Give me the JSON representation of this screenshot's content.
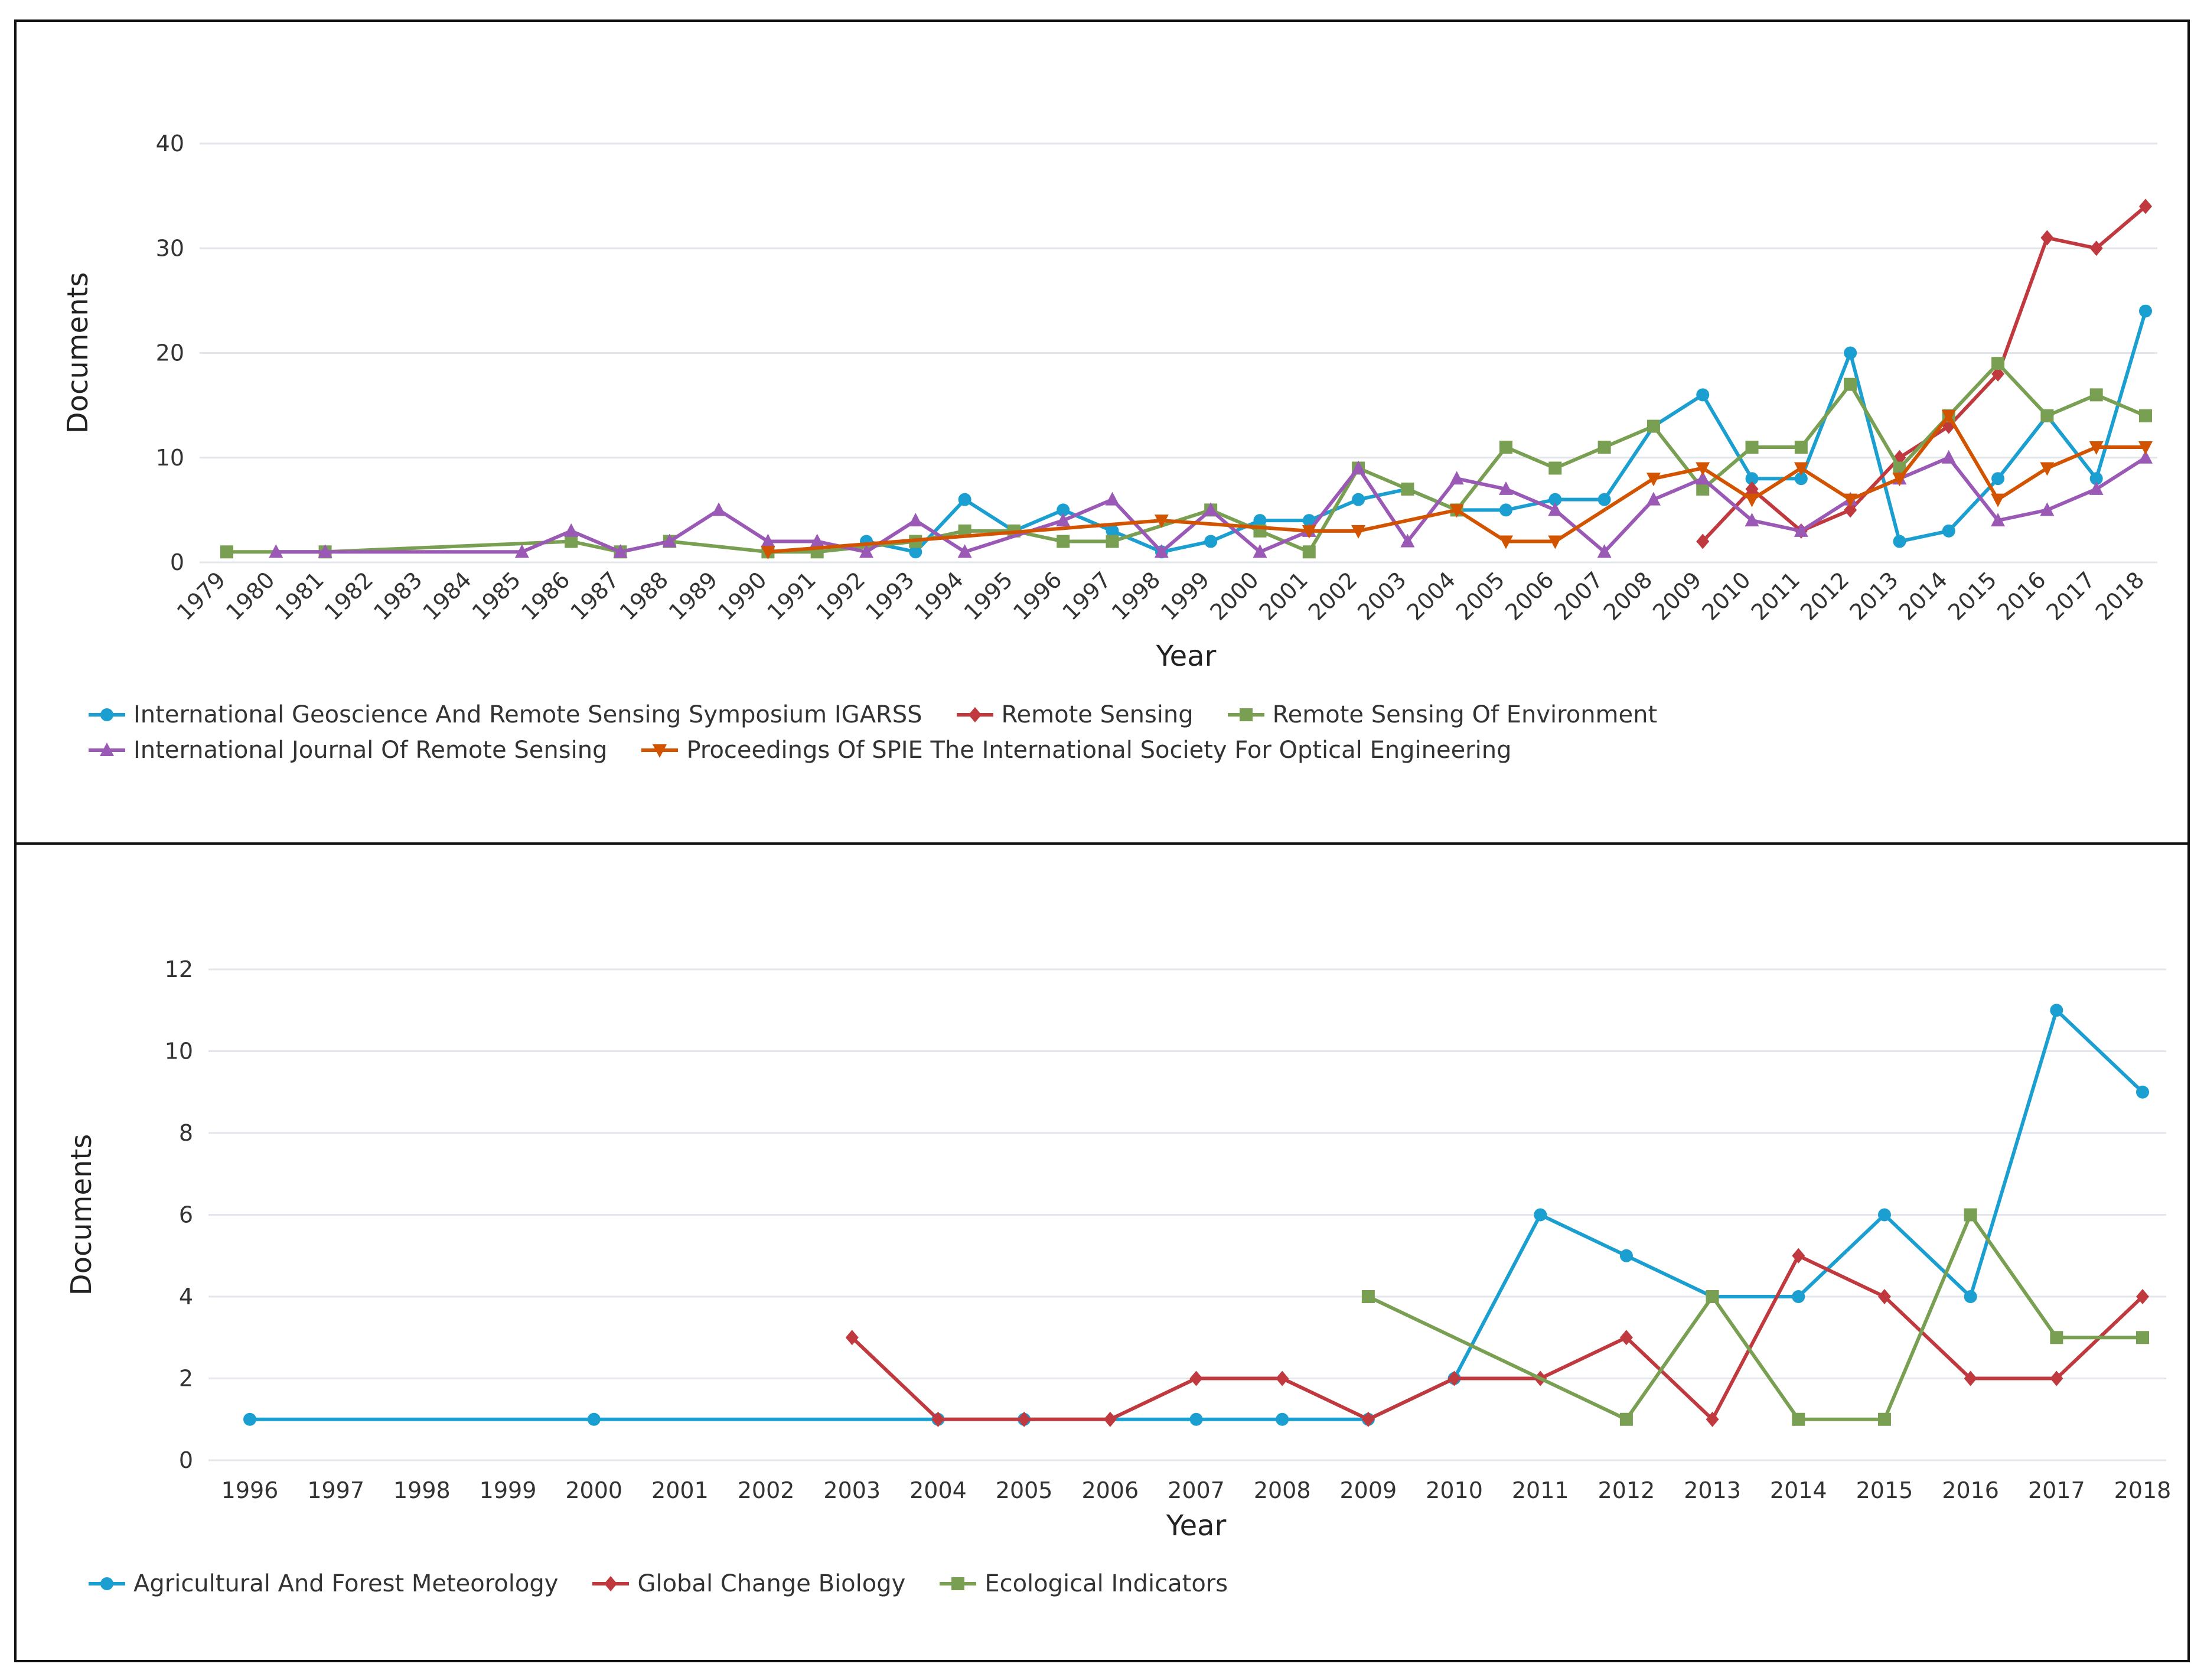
{
  "chart_data": [
    {
      "type": "line",
      "title": "",
      "xlabel": "Year",
      "ylabel": "Documents",
      "ylim": [
        0,
        40
      ],
      "yticks": [
        0,
        10,
        20,
        30,
        40
      ],
      "grid": true,
      "legend_position": "bottom",
      "categories": [
        "1979",
        "1980",
        "1981",
        "1982",
        "1983",
        "1984",
        "1985",
        "1986",
        "1987",
        "1988",
        "1989",
        "1990",
        "1991",
        "1992",
        "1993",
        "1994",
        "1995",
        "1996",
        "1997",
        "1998",
        "1999",
        "2000",
        "2001",
        "2002",
        "2003",
        "2004",
        "2005",
        "2006",
        "2007",
        "2008",
        "2009",
        "2010",
        "2011",
        "2012",
        "2013",
        "2014",
        "2015",
        "2016",
        "2017",
        "2018"
      ],
      "series": [
        {
          "name": "International Geoscience And Remote Sensing Symposium IGARSS",
          "color": "#1a9fd0",
          "marker": "circle",
          "points": [
            [
              "1992",
              2
            ],
            [
              "1993",
              1
            ],
            [
              "1994",
              6
            ],
            [
              "1995",
              3
            ],
            [
              "1996",
              5
            ],
            [
              "1997",
              3
            ],
            [
              "1998",
              1
            ],
            [
              "1999",
              2
            ],
            [
              "2000",
              4
            ],
            [
              "2001",
              4
            ],
            [
              "2002",
              6
            ],
            [
              "2003",
              7
            ],
            [
              "2004",
              5
            ],
            [
              "2005",
              5
            ],
            [
              "2006",
              6
            ],
            [
              "2007",
              6
            ],
            [
              "2008",
              13
            ],
            [
              "2009",
              16
            ],
            [
              "2010",
              8
            ],
            [
              "2011",
              8
            ],
            [
              "2012",
              20
            ],
            [
              "2013",
              2
            ],
            [
              "2014",
              3
            ],
            [
              "2015",
              8
            ],
            [
              "2016",
              14
            ],
            [
              "2017",
              8
            ],
            [
              "2018",
              24
            ]
          ]
        },
        {
          "name": "Remote Sensing",
          "color": "#c0393f",
          "marker": "diamond",
          "points": [
            [
              "2009",
              2
            ],
            [
              "2010",
              7
            ],
            [
              "2011",
              3
            ],
            [
              "2012",
              5
            ],
            [
              "2013",
              10
            ],
            [
              "2014",
              13
            ],
            [
              "2015",
              18
            ],
            [
              "2016",
              31
            ],
            [
              "2017",
              30
            ],
            [
              "2018",
              34
            ]
          ]
        },
        {
          "name": "Remote Sensing Of Environment",
          "color": "#79a052",
          "marker": "square",
          "points": [
            [
              "1979",
              1
            ],
            [
              "1981",
              1
            ],
            [
              "1986",
              2
            ],
            [
              "1987",
              1
            ],
            [
              "1988",
              2
            ],
            [
              "1990",
              1
            ],
            [
              "1991",
              1
            ],
            [
              "1993",
              2
            ],
            [
              "1994",
              3
            ],
            [
              "1995",
              3
            ],
            [
              "1996",
              2
            ],
            [
              "1997",
              2
            ],
            [
              "1999",
              5
            ],
            [
              "2000",
              3
            ],
            [
              "2001",
              1
            ],
            [
              "2002",
              9
            ],
            [
              "2003",
              7
            ],
            [
              "2004",
              5
            ],
            [
              "2005",
              11
            ],
            [
              "2006",
              9
            ],
            [
              "2007",
              11
            ],
            [
              "2008",
              13
            ],
            [
              "2009",
              7
            ],
            [
              "2010",
              11
            ],
            [
              "2011",
              11
            ],
            [
              "2012",
              17
            ],
            [
              "2013",
              9
            ],
            [
              "2014",
              14
            ],
            [
              "2015",
              19
            ],
            [
              "2016",
              14
            ],
            [
              "2017",
              16
            ],
            [
              "2018",
              14
            ]
          ]
        },
        {
          "name": "International Journal Of Remote Sensing",
          "color": "#9b59b6",
          "marker": "triangle",
          "points": [
            [
              "1980",
              1
            ],
            [
              "1981",
              1
            ],
            [
              "1985",
              1
            ],
            [
              "1986",
              3
            ],
            [
              "1987",
              1
            ],
            [
              "1988",
              2
            ],
            [
              "1989",
              5
            ],
            [
              "1990",
              2
            ],
            [
              "1991",
              2
            ],
            [
              "1992",
              1
            ],
            [
              "1993",
              4
            ],
            [
              "1994",
              1
            ],
            [
              "1996",
              4
            ],
            [
              "1997",
              6
            ],
            [
              "1998",
              1
            ],
            [
              "1999",
              5
            ],
            [
              "2000",
              1
            ],
            [
              "2001",
              3
            ],
            [
              "2002",
              9
            ],
            [
              "2003",
              2
            ],
            [
              "2004",
              8
            ],
            [
              "2005",
              7
            ],
            [
              "2006",
              5
            ],
            [
              "2007",
              1
            ],
            [
              "2008",
              6
            ],
            [
              "2009",
              8
            ],
            [
              "2010",
              4
            ],
            [
              "2011",
              3
            ],
            [
              "2012",
              6
            ],
            [
              "2013",
              8
            ],
            [
              "2014",
              10
            ],
            [
              "2015",
              4
            ],
            [
              "2016",
              5
            ],
            [
              "2017",
              7
            ],
            [
              "2018",
              10
            ]
          ]
        },
        {
          "name": "Proceedings Of SPIE The International Society For Optical Engineering",
          "color": "#d35400",
          "marker": "triangle-down",
          "points": [
            [
              "1990",
              1
            ],
            [
              "1998",
              4
            ],
            [
              "2001",
              3
            ],
            [
              "2002",
              3
            ],
            [
              "2004",
              5
            ],
            [
              "2005",
              2
            ],
            [
              "2006",
              2
            ],
            [
              "2008",
              8
            ],
            [
              "2009",
              9
            ],
            [
              "2010",
              6
            ],
            [
              "2011",
              9
            ],
            [
              "2012",
              6
            ],
            [
              "2013",
              8
            ],
            [
              "2014",
              14
            ],
            [
              "2015",
              6
            ],
            [
              "2016",
              9
            ],
            [
              "2017",
              11
            ],
            [
              "2018",
              11
            ]
          ]
        }
      ]
    },
    {
      "type": "line",
      "title": "",
      "xlabel": "Year",
      "ylabel": "Documents",
      "ylim": [
        0,
        12
      ],
      "yticks": [
        0,
        2,
        4,
        6,
        8,
        10,
        12
      ],
      "grid": true,
      "legend_position": "bottom",
      "categories": [
        "1996",
        "1997",
        "1998",
        "1999",
        "2000",
        "2001",
        "2002",
        "2003",
        "2004",
        "2005",
        "2006",
        "2007",
        "2008",
        "2009",
        "2010",
        "2011",
        "2012",
        "2013",
        "2014",
        "2015",
        "2016",
        "2017",
        "2018"
      ],
      "series": [
        {
          "name": "Agricultural And Forest Meteorology",
          "color": "#1a9fd0",
          "marker": "circle",
          "points": [
            [
              "1996",
              1
            ],
            [
              "2000",
              1
            ],
            [
              "2004",
              1
            ],
            [
              "2005",
              1
            ],
            [
              "2007",
              1
            ],
            [
              "2008",
              1
            ],
            [
              "2009",
              1
            ],
            [
              "2010",
              2
            ],
            [
              "2011",
              6
            ],
            [
              "2012",
              5
            ],
            [
              "2013",
              4
            ],
            [
              "2014",
              4
            ],
            [
              "2015",
              6
            ],
            [
              "2016",
              4
            ],
            [
              "2017",
              11
            ],
            [
              "2018",
              9
            ]
          ]
        },
        {
          "name": "Global Change Biology",
          "color": "#c0393f",
          "marker": "diamond",
          "points": [
            [
              "2003",
              3
            ],
            [
              "2004",
              1
            ],
            [
              "2005",
              1
            ],
            [
              "2006",
              1
            ],
            [
              "2007",
              2
            ],
            [
              "2008",
              2
            ],
            [
              "2009",
              1
            ],
            [
              "2010",
              2
            ],
            [
              "2011",
              2
            ],
            [
              "2012",
              3
            ],
            [
              "2013",
              1
            ],
            [
              "2014",
              5
            ],
            [
              "2015",
              4
            ],
            [
              "2016",
              2
            ],
            [
              "2017",
              2
            ],
            [
              "2018",
              4
            ]
          ]
        },
        {
          "name": "Ecological Indicators",
          "color": "#79a052",
          "marker": "square",
          "points": [
            [
              "2009",
              4
            ],
            [
              "2012",
              1
            ],
            [
              "2013",
              4
            ],
            [
              "2014",
              1
            ],
            [
              "2015",
              1
            ],
            [
              "2016",
              6
            ],
            [
              "2017",
              3
            ],
            [
              "2018",
              3
            ]
          ]
        }
      ]
    }
  ]
}
